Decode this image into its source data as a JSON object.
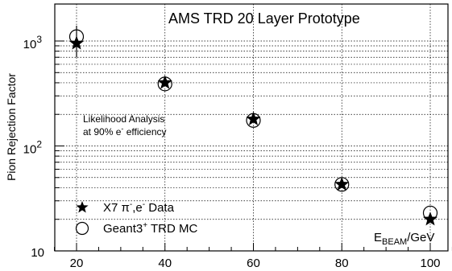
{
  "chart_data": {
    "type": "scatter",
    "title": "AMS TRD   20 Layer Prototype",
    "ylabel": "Pion Rejection Factor",
    "xlabel": {
      "main": "E",
      "sub": "BEAM",
      "unit": "/GeV"
    },
    "ylog": true,
    "xlim": [
      15,
      105
    ],
    "ylim": [
      10,
      1500
    ],
    "grid": {
      "x": true,
      "y": true
    },
    "x_ticks": [
      "20",
      "40",
      "60",
      "80",
      "100"
    ],
    "y_ticks": [
      {
        "base": "10",
        "exp": "",
        "value": 10
      },
      {
        "base": "10",
        "exp": "2",
        "value": 100
      },
      {
        "base": "10",
        "exp": "3",
        "value": 1000
      }
    ],
    "annotation": {
      "line1": "Likelihood Analysis",
      "line2_pre": "at 90% e",
      "line2_sup": "-",
      "line2_post": " efficiency"
    },
    "legend": {
      "placement": "bottom-left",
      "data": {
        "pre": "X7 π",
        "sup1": "-",
        "mid": ",e",
        "sup2": "-",
        "post": "   Data"
      },
      "mc": {
        "pre": "Geant3",
        "sup": "+",
        "post": "   TRD MC"
      }
    },
    "series": [
      {
        "marker": "star",
        "x": [
          20,
          40,
          60,
          80,
          100
        ],
        "y": [
          950,
          400,
          180,
          43,
          20
        ],
        "err_low": [
          700,
          400,
          180,
          43,
          20
        ],
        "err_high": [
          1400,
          400,
          180,
          43,
          20
        ]
      },
      {
        "marker": "open-circle",
        "x": [
          20,
          40,
          60,
          80,
          100
        ],
        "y": [
          1100,
          390,
          175,
          43,
          23
        ]
      }
    ]
  }
}
